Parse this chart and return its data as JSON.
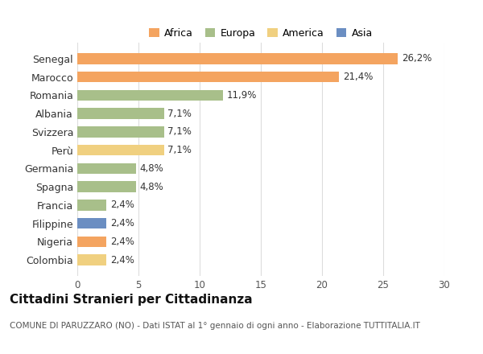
{
  "categories": [
    "Senegal",
    "Marocco",
    "Romania",
    "Albania",
    "Svizzera",
    "Perù",
    "Germania",
    "Spagna",
    "Francia",
    "Filippine",
    "Nigeria",
    "Colombia"
  ],
  "values": [
    26.2,
    21.4,
    11.9,
    7.1,
    7.1,
    7.1,
    4.8,
    4.8,
    2.4,
    2.4,
    2.4,
    2.4
  ],
  "labels": [
    "26,2%",
    "21,4%",
    "11,9%",
    "7,1%",
    "7,1%",
    "7,1%",
    "4,8%",
    "4,8%",
    "2,4%",
    "2,4%",
    "2,4%",
    "2,4%"
  ],
  "continents": [
    "Africa",
    "Africa",
    "Europa",
    "Europa",
    "Europa",
    "America",
    "Europa",
    "Europa",
    "Europa",
    "Asia",
    "Africa",
    "America"
  ],
  "colors": {
    "Africa": "#F4A460",
    "Europa": "#A8BF8A",
    "America": "#F0D080",
    "Asia": "#6B8EC2"
  },
  "legend_order": [
    "Africa",
    "Europa",
    "America",
    "Asia"
  ],
  "legend_colors": {
    "Africa": "#F4A460",
    "Europa": "#A8BF8A",
    "America": "#F0D080",
    "Asia": "#6B8EC2"
  },
  "xlim": [
    0,
    30
  ],
  "xticks": [
    0,
    5,
    10,
    15,
    20,
    25,
    30
  ],
  "title": "Cittadini Stranieri per Cittadinanza",
  "subtitle": "COMUNE DI PARUZZARO (NO) - Dati ISTAT al 1° gennaio di ogni anno - Elaborazione TUTTITALIA.IT",
  "bg_color": "#FFFFFF",
  "bar_height": 0.6,
  "label_fontsize": 8.5,
  "title_fontsize": 11,
  "subtitle_fontsize": 7.5
}
